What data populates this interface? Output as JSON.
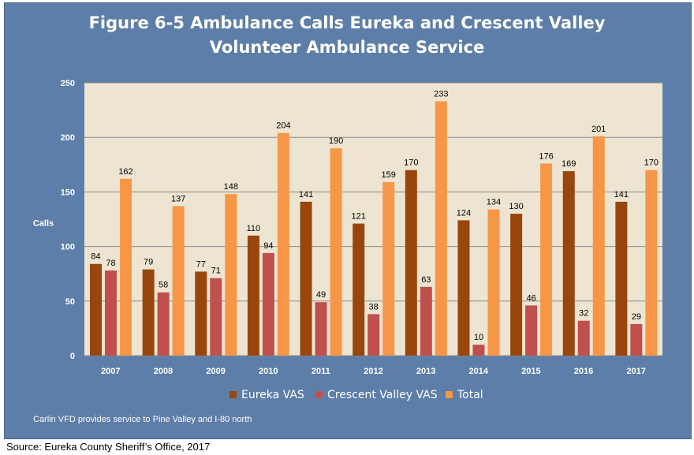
{
  "figure": {
    "title_line1": "Figure 6-5 Ambulance Calls Eureka and Crescent Valley",
    "title_line2": "Volunteer Ambulance Service",
    "footnote": "Carlin VFD provides service to Pine Valley and I-80 north",
    "source": "Source: Eureka County Sheriff’s Office, 2017"
  },
  "colors": {
    "panel_bg": "#5d7ea8",
    "plot_bg": "#ede5d1",
    "eureka": "#98460c",
    "crescent": "#c0504d",
    "total": "#f79646"
  },
  "chart_data": {
    "type": "bar",
    "title": "Figure 6-5 Ambulance Calls Eureka and Crescent Valley Volunteer Ambulance Service",
    "xlabel": "",
    "ylabel": "Calls",
    "ylim": [
      0,
      250
    ],
    "yticks": [
      0,
      50,
      100,
      150,
      200,
      250
    ],
    "grid": true,
    "legend_position": "bottom",
    "categories": [
      "2007",
      "2008",
      "2009",
      "2010",
      "2011",
      "2012",
      "2013",
      "2014",
      "2015",
      "2016",
      "2017"
    ],
    "series": [
      {
        "name": "Eureka VAS",
        "values": [
          84,
          79,
          77,
          110,
          141,
          121,
          170,
          124,
          130,
          169,
          141
        ],
        "color": "#98460c"
      },
      {
        "name": "Crescent Valley VAS",
        "values": [
          78,
          58,
          71,
          94,
          49,
          38,
          63,
          10,
          46,
          32,
          29
        ],
        "color": "#c0504d"
      },
      {
        "name": "Total",
        "values": [
          162,
          137,
          148,
          204,
          190,
          159,
          233,
          134,
          176,
          201,
          170
        ],
        "color": "#f79646"
      }
    ]
  }
}
